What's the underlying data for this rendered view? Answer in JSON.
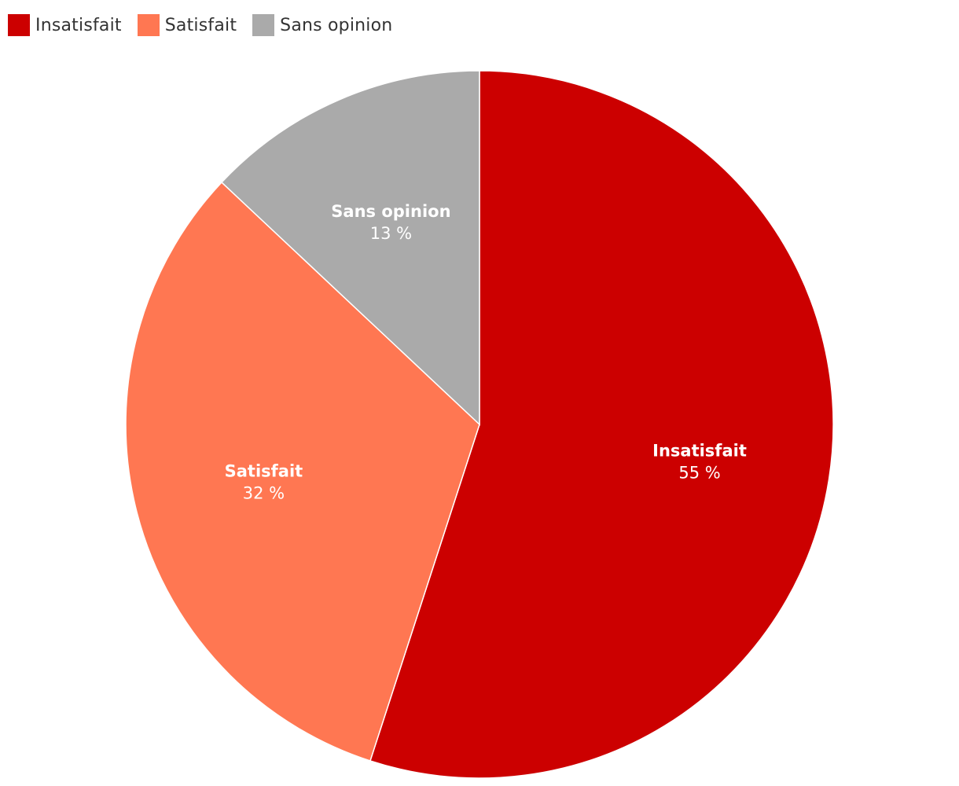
{
  "chart_data": {
    "type": "pie",
    "categories": [
      "Insatisfait",
      "Satisfait",
      "Sans opinion"
    ],
    "values": [
      55,
      32,
      13
    ],
    "value_labels": [
      "55 %",
      "32 %",
      "13 %"
    ],
    "colors": [
      "#cc0000",
      "#ff7752",
      "#aaaaaa"
    ],
    "legend": {
      "position": "top-left",
      "items": [
        {
          "label": "Insatisfait",
          "color": "#cc0000"
        },
        {
          "label": "Satisfait",
          "color": "#ff7752"
        },
        {
          "label": "Sans opinion",
          "color": "#aaaaaa"
        }
      ]
    },
    "start_angle": "12 o'clock",
    "direction": "clockwise"
  }
}
